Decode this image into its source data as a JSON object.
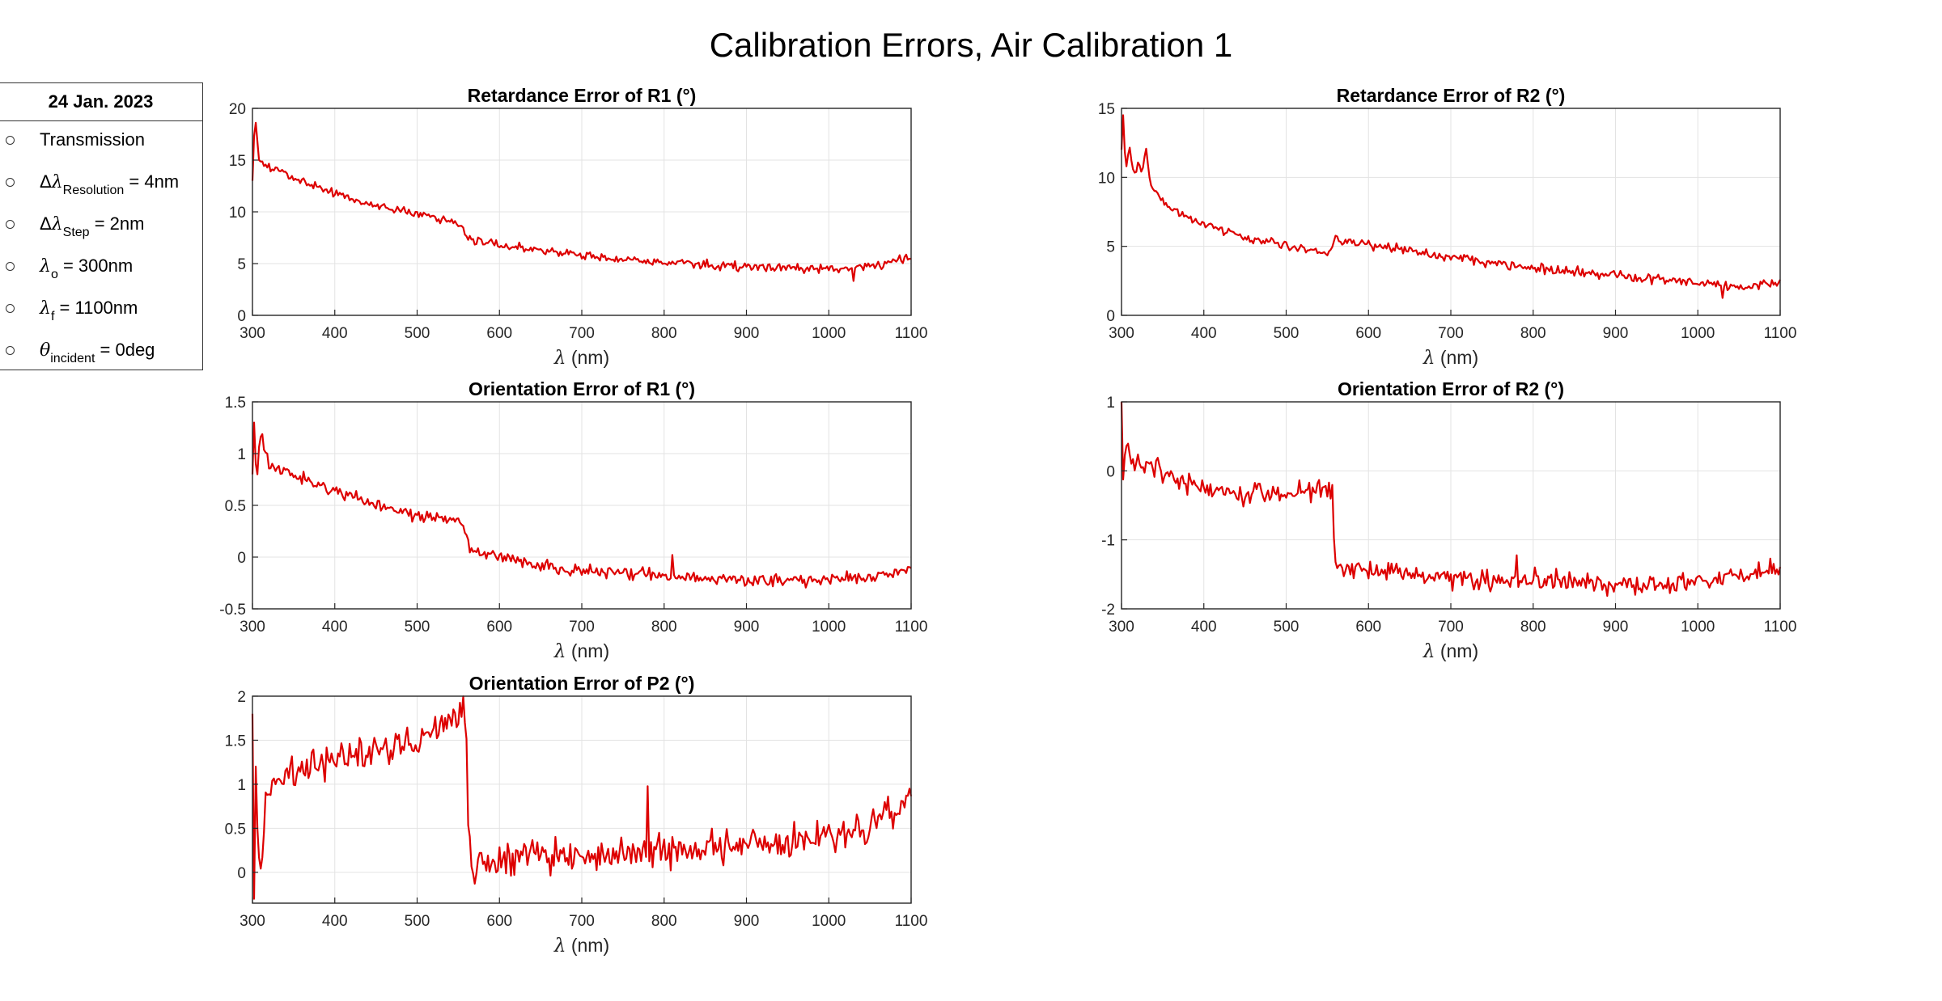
{
  "figure_title": "Calibration Errors,  Air Calibration 1",
  "info": {
    "date": "24 Jan. 2023",
    "items": [
      {
        "pre": "",
        "greek": "",
        "sub": "",
        "post": "Transmission"
      },
      {
        "pre": "Δ",
        "greek": "λ",
        "sub": "Resolution",
        "post": " = 4nm"
      },
      {
        "pre": "Δ",
        "greek": "λ",
        "sub": "Step",
        "post": " = 2nm"
      },
      {
        "pre": "",
        "greek": "λ",
        "sub": "o",
        "post": " = 300nm"
      },
      {
        "pre": "",
        "greek": "λ",
        "sub": "f",
        "post": " = 1100nm"
      },
      {
        "pre": "",
        "greek": "θ",
        "sub": "incident",
        "post": " = 0deg"
      }
    ]
  },
  "colors": {
    "line": "#dd0000",
    "grid": "#e3e3e3",
    "axis": "#262626"
  },
  "chart_data": [
    {
      "id": "ret-r1",
      "type": "line",
      "title": "Retardance Error of R1 (°)",
      "xlabel_sym": "λ",
      "xlabel": " (nm)",
      "xlim": [
        300,
        1100
      ],
      "ylim": [
        0,
        20
      ],
      "xticks": [
        300,
        400,
        500,
        600,
        700,
        800,
        900,
        1000,
        1100
      ],
      "yticks": [
        0,
        5,
        10,
        15,
        20
      ],
      "series": [
        {
          "x": [
            300,
            303,
            308,
            315,
            330,
            350,
            380,
            420,
            460,
            500,
            530,
            550,
            555,
            560,
            565,
            600,
            650,
            700,
            750,
            800,
            850,
            900,
            950,
            1000,
            1050,
            1100
          ],
          "y": [
            13,
            19.5,
            15,
            14.5,
            14.2,
            13.3,
            12.3,
            11.2,
            10.5,
            9.8,
            9.3,
            9.0,
            8.5,
            7.6,
            7.3,
            6.8,
            6.2,
            5.8,
            5.4,
            5.1,
            4.9,
            4.7,
            4.6,
            4.5,
            4.7,
            5.6
          ],
          "noise": 0.35,
          "spikes": [
            [
              1030,
              -1.2
            ]
          ]
        }
      ]
    },
    {
      "id": "ret-r2",
      "type": "line",
      "title": "Retardance Error of R2 (°)",
      "xlabel_sym": "λ",
      "xlabel": " (nm)",
      "xlim": [
        300,
        1100
      ],
      "ylim": [
        0,
        15
      ],
      "xticks": [
        300,
        400,
        500,
        600,
        700,
        800,
        900,
        1000,
        1100
      ],
      "yticks": [
        0,
        5,
        10,
        15
      ],
      "series": [
        {
          "x": [
            300,
            302,
            305,
            310,
            315,
            320,
            325,
            330,
            335,
            340,
            350,
            380,
            420,
            460,
            500,
            530,
            550,
            555,
            560,
            565,
            600,
            650,
            700,
            750,
            800,
            850,
            900,
            950,
            1000,
            1050,
            1100
          ],
          "y": [
            12,
            14.5,
            10.5,
            12,
            10,
            11,
            10.5,
            12,
            9.5,
            9,
            8.2,
            7,
            6.2,
            5.5,
            5.1,
            4.7,
            4.6,
            4.7,
            5.8,
            5.4,
            5.1,
            4.7,
            4.2,
            3.8,
            3.4,
            3.1,
            2.9,
            2.6,
            2.4,
            2.0,
            2.4
          ],
          "noise": 0.3,
          "spikes": [
            [
              1030,
              -1.0
            ]
          ]
        }
      ]
    },
    {
      "id": "ori-r1",
      "type": "line",
      "title": "Orientation Error of R1 (°)",
      "xlabel_sym": "λ",
      "xlabel": " (nm)",
      "xlim": [
        300,
        1100
      ],
      "ylim": [
        -0.5,
        1.5
      ],
      "xticks": [
        300,
        400,
        500,
        600,
        700,
        800,
        900,
        1000,
        1100
      ],
      "yticks": [
        -0.5,
        0,
        0.5,
        1,
        1.5
      ],
      "series": [
        {
          "x": [
            300,
            302,
            305,
            310,
            320,
            350,
            400,
            450,
            500,
            540,
            555,
            560,
            565,
            570,
            600,
            650,
            700,
            750,
            800,
            850,
            900,
            950,
            1000,
            1050,
            1100
          ],
          "y": [
            0.8,
            1.3,
            0.7,
            1.2,
            0.9,
            0.8,
            0.65,
            0.5,
            0.4,
            0.37,
            0.33,
            0.2,
            0.08,
            0.05,
            0.0,
            -0.08,
            -0.12,
            -0.15,
            -0.18,
            -0.2,
            -0.23,
            -0.22,
            -0.22,
            -0.2,
            -0.12
          ],
          "noise": 0.055,
          "spikes": [
            [
              810,
              0.2
            ],
            [
              1035,
              0.15
            ]
          ]
        }
      ]
    },
    {
      "id": "ori-r2",
      "type": "line",
      "title": "Orientation Error of R2 (°)",
      "xlabel_sym": "λ",
      "xlabel": " (nm)",
      "xlim": [
        300,
        1100
      ],
      "ylim": [
        -2,
        1
      ],
      "xticks": [
        300,
        400,
        500,
        600,
        700,
        800,
        900,
        1000,
        1100
      ],
      "yticks": [
        -2,
        -1,
        0,
        1
      ],
      "series": [
        {
          "x": [
            300,
            301,
            305,
            310,
            330,
            350,
            400,
            450,
            500,
            550,
            556,
            558,
            560,
            562,
            600,
            650,
            700,
            750,
            800,
            850,
            900,
            950,
            1000,
            1050,
            1100
          ],
          "y": [
            1.0,
            -0.3,
            0.4,
            0.2,
            0.1,
            0.0,
            -0.3,
            -0.35,
            -0.32,
            -0.25,
            -0.3,
            -0.9,
            -1.3,
            -1.4,
            -1.45,
            -1.5,
            -1.55,
            -1.6,
            -1.6,
            -1.6,
            -1.65,
            -1.65,
            -1.6,
            -1.55,
            -1.4
          ],
          "noise": 0.13,
          "spikes": [
            [
              780,
              0.45
            ],
            [
              905,
              -0.4
            ],
            [
              1055,
              -0.35
            ]
          ]
        }
      ]
    },
    {
      "id": "ori-p2",
      "type": "line",
      "title": "Orientation Error of P2 (°)",
      "xlabel_sym": "λ",
      "xlabel": " (nm)",
      "xlim": [
        300,
        1100
      ],
      "ylim": [
        -0.35,
        2
      ],
      "xticks": [
        300,
        400,
        500,
        600,
        700,
        800,
        900,
        1000,
        1100
      ],
      "yticks": [
        0,
        0.5,
        1,
        1.5,
        2
      ],
      "series": [
        {
          "x": [
            300,
            302,
            304,
            306,
            310,
            315,
            320,
            340,
            380,
            420,
            460,
            500,
            540,
            550,
            555,
            560,
            563,
            566,
            570,
            600,
            650,
            700,
            750,
            800,
            850,
            900,
            950,
            1000,
            1050,
            1100
          ],
          "y": [
            1.8,
            -0.3,
            1.2,
            0.5,
            -0.1,
            0.8,
            1.0,
            1.1,
            1.2,
            1.3,
            1.4,
            1.5,
            1.7,
            1.8,
            1.95,
            1.5,
            0.3,
            0.15,
            0.1,
            0.15,
            0.2,
            0.2,
            0.2,
            0.25,
            0.3,
            0.3,
            0.35,
            0.4,
            0.5,
            0.85
          ],
          "noise": 0.16,
          "spikes": [
            [
              780,
              0.7
            ],
            [
              1110,
              0
            ]
          ]
        }
      ]
    }
  ]
}
